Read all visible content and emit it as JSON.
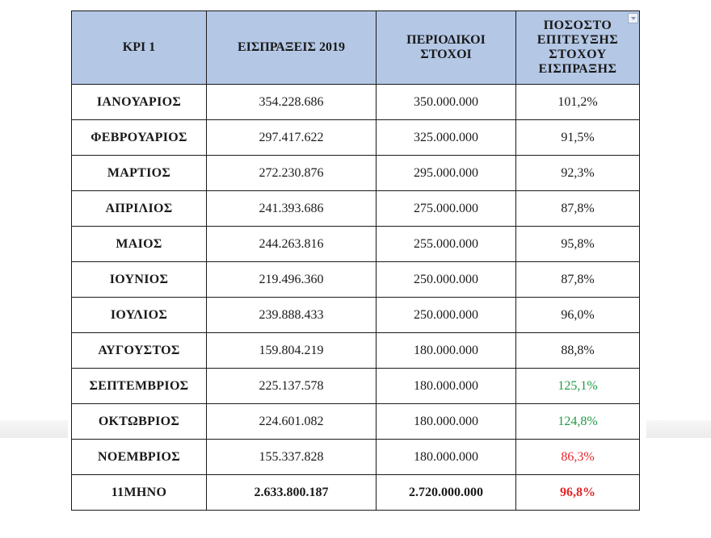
{
  "table": {
    "headers": [
      "ΚΡΙ 1",
      "ΕΙΣΠΡΑΞΕΙΣ 2019",
      "ΠΕΡΙΟΔΙΚΟΙ ΣΤΟΧΟΙ",
      "ΠΟΣΟΣΤΟ ΕΠΙΤΕΥΞΗΣ ΣΤΟΧΟΥ ΕΙΣΠΡΑΞΗΣ"
    ],
    "header_lines": {
      "col3": [
        "ΠΕΡΙΟΔΙΚΟΙ",
        "ΣΤΟΧΟΙ"
      ],
      "col4": [
        "ΠΟΣΟΣΤΟ",
        "ΕΠΙΤΕΥΞΗΣ",
        "ΣΤΟΧΟΥ",
        "ΕΙΣΠΡΑΞΗΣ"
      ]
    },
    "rows": [
      {
        "month": "ΙΑΝΟΥΑΡΙΟΣ",
        "receipts": "354.228.686",
        "target": "350.000.000",
        "pct": "101,2%",
        "status": "normal"
      },
      {
        "month": "ΦΕΒΡΟΥΑΡΙΟΣ",
        "receipts": "297.417.622",
        "target": "325.000.000",
        "pct": "91,5%",
        "status": "normal"
      },
      {
        "month": "ΜΑΡΤΙΟΣ",
        "receipts": "272.230.876",
        "target": "295.000.000",
        "pct": "92,3%",
        "status": "normal"
      },
      {
        "month": "ΑΠΡΙΛΙΟΣ",
        "receipts": "241.393.686",
        "target": "275.000.000",
        "pct": "87,8%",
        "status": "normal"
      },
      {
        "month": "ΜΑΙΟΣ",
        "receipts": "244.263.816",
        "target": "255.000.000",
        "pct": "95,8%",
        "status": "normal"
      },
      {
        "month": "ΙΟΥΝΙΟΣ",
        "receipts": "219.496.360",
        "target": "250.000.000",
        "pct": "87,8%",
        "status": "normal"
      },
      {
        "month": "ΙΟΥΛΙΟΣ",
        "receipts": "239.888.433",
        "target": "250.000.000",
        "pct": "96,0%",
        "status": "normal"
      },
      {
        "month": "ΑΥΓΟΥΣΤΟΣ",
        "receipts": "159.804.219",
        "target": "180.000.000",
        "pct": "88,8%",
        "status": "normal"
      },
      {
        "month": "ΣΕΠΤΕΜΒΡΙΟΣ",
        "receipts": "225.137.578",
        "target": "180.000.000",
        "pct": "125,1%",
        "status": "green"
      },
      {
        "month": "ΟΚΤΩΒΡΙΟΣ",
        "receipts": "224.601.082",
        "target": "180.000.000",
        "pct": "124,8%",
        "status": "green"
      },
      {
        "month": "ΝΟΕΜΒΡΙΟΣ",
        "receipts": "155.337.828",
        "target": "180.000.000",
        "pct": "86,3%",
        "status": "red"
      }
    ],
    "total": {
      "month": "11ΜΗΝΟ",
      "receipts": "2.633.800.187",
      "target": "2.720.000.000",
      "pct": "96,8%",
      "status": "red"
    }
  },
  "colors": {
    "header_bg": "#b4c8e6",
    "green": "#1f9a46",
    "red": "#e3262a"
  }
}
